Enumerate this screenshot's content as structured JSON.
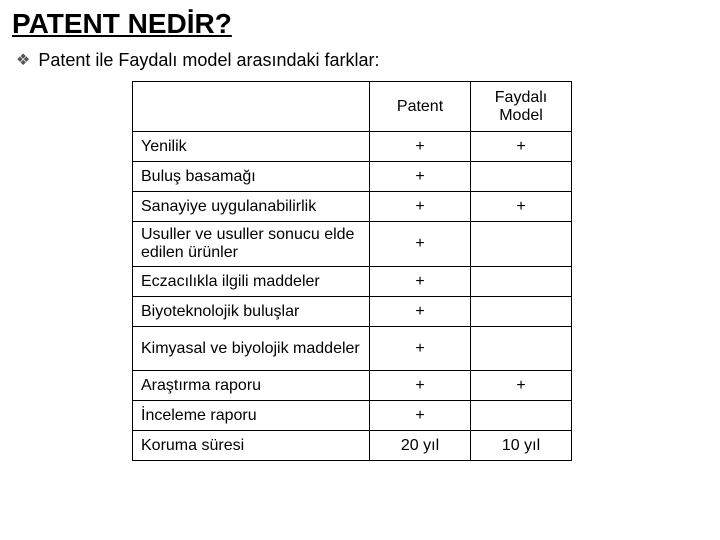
{
  "title": "PATENT NEDİR?",
  "subtitle": "Patent ile Faydalı model arasındaki farklar:",
  "table": {
    "headers": {
      "col0": "",
      "col1": "Patent",
      "col2": "Faydalı Model"
    },
    "rows": [
      {
        "label": "Yenilik",
        "patent": "+",
        "faydali": "+"
      },
      {
        "label": "Buluş basamağı",
        "patent": "+",
        "faydali": ""
      },
      {
        "label": "Sanayiye uygulanabilirlik",
        "patent": "+",
        "faydali": "+"
      },
      {
        "label": "Usuller ve usuller sonucu elde edilen ürünler",
        "patent": "+",
        "faydali": ""
      },
      {
        "label": "Eczacılıkla ilgili maddeler",
        "patent": "+",
        "faydali": ""
      },
      {
        "label": "Biyoteknolojik buluşlar",
        "patent": "+",
        "faydali": ""
      },
      {
        "label": "Kimyasal ve biyolojik maddeler",
        "patent": "+",
        "faydali": ""
      },
      {
        "label": "Araştırma raporu",
        "patent": "+",
        "faydali": "+"
      },
      {
        "label": "İnceleme raporu",
        "patent": "+",
        "faydali": ""
      },
      {
        "label": "Koruma süresi",
        "patent": "20 yıl",
        "faydali": "10 yıl"
      }
    ]
  },
  "styling": {
    "background_color": "#ffffff",
    "text_color": "#000000",
    "border_color": "#000000",
    "title_fontsize": 28,
    "subtitle_fontsize": 18,
    "cell_fontsize": 16
  }
}
